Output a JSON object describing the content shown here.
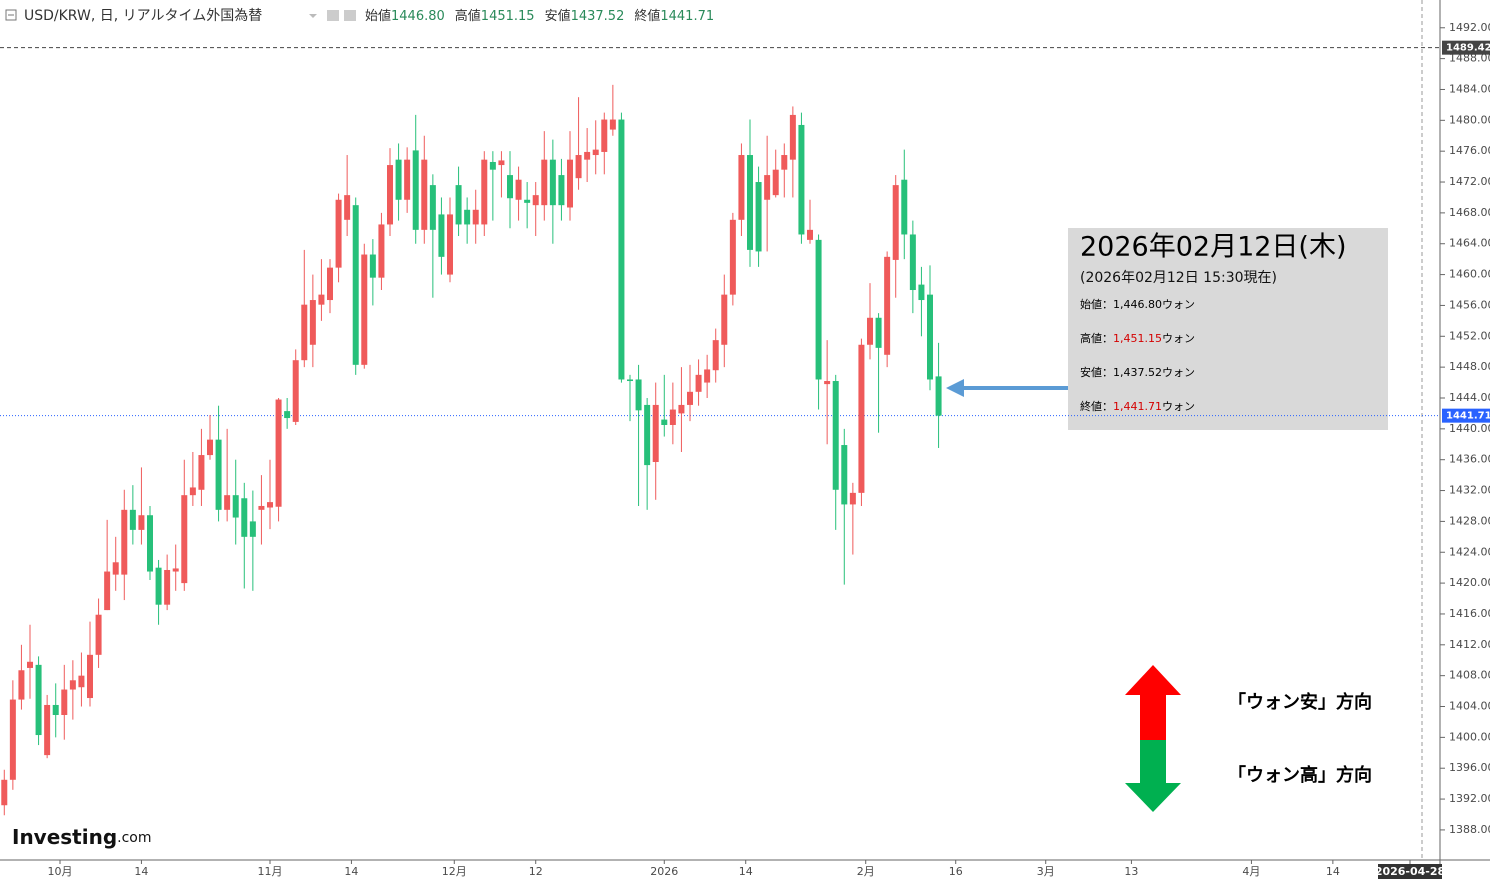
{
  "chart_data": {
    "type": "candlestick",
    "title": "USD/KRW, 日, リアルタイム外国為替",
    "ohlc_header": [
      {
        "label": "始値",
        "value": "1446.80"
      },
      {
        "label": "高値",
        "value": "1451.15"
      },
      {
        "label": "安値",
        "value": "1437.52"
      },
      {
        "label": "終値",
        "value": "1441.71"
      }
    ],
    "up_color": "#ef5a5a",
    "down_color": "#27c07a",
    "x": [
      0,
      1,
      2,
      3,
      4,
      5,
      6,
      7,
      8,
      9,
      10,
      11,
      12,
      13,
      14,
      15,
      16,
      17,
      18,
      19,
      20,
      21,
      22,
      23,
      24,
      25,
      26,
      27,
      28,
      29,
      30,
      31,
      32,
      33,
      34,
      35,
      36,
      37,
      38,
      39,
      40,
      41,
      42,
      43,
      44,
      45,
      46,
      47,
      48,
      49,
      50,
      51,
      52,
      53,
      54,
      55,
      56,
      57,
      58,
      59,
      60,
      61,
      62,
      63,
      64,
      65,
      66,
      67,
      68,
      69,
      70,
      71,
      72,
      73,
      74,
      75,
      76,
      77,
      78,
      79,
      80,
      81,
      82,
      83,
      84,
      85,
      86,
      87,
      88,
      89,
      90,
      91,
      92,
      93,
      94,
      95,
      96,
      97,
      98,
      99,
      100,
      101,
      102,
      103,
      104,
      105,
      106,
      107,
      108,
      109
    ],
    "open": [
      1391.2,
      1394.5,
      1404.9,
      1409,
      1409.4,
      1397.7,
      1404.2,
      1402.9,
      1406.2,
      1406.5,
      1405.1,
      1410.7,
      1416.5,
      1421.1,
      1421.1,
      1429.5,
      1426.9,
      1428.8,
      1422,
      1417.2,
      1421.5,
      1420,
      1431.4,
      1432.1,
      1436.6,
      1438.6,
      1429.5,
      1431.4,
      1431,
      1428,
      1429.5,
      1429.8,
      1429.9,
      1442.3,
      1440.9,
      1448.9,
      1450.9,
      1456.1,
      1456.7,
      1460.9,
      1467.1,
      1469,
      1448.3,
      1462.6,
      1459.6,
      1466.5,
      1474.9,
      1469.7,
      1476.1,
      1465.8,
      1471.6,
      1467.8,
      1460,
      1471.6,
      1468.4,
      1466.5,
      1466.5,
      1474.6,
      1474.2,
      1472.9,
      1469.7,
      1469.7,
      1469,
      1469,
      1474.9,
      1472.9,
      1468.7,
      1472.5,
      1474.9,
      1475.5,
      1475.9,
      1478.8,
      1480.1,
      1446.4,
      1446.4,
      1443.1,
      1435.7,
      1441.2,
      1440.5,
      1442,
      1443.1,
      1444.8,
      1446,
      1447.6,
      1450.9,
      1457.4,
      1467.1,
      1475.5,
      1472,
      1469.7,
      1470.3,
      1473.6,
      1474.9,
      1479.4,
      1464.5,
      1464.5,
      1445.8,
      1446.2,
      1437.9,
      1430.2,
      1431.7,
      1450.9,
      1454.4,
      1449.6,
      1461.9,
      1472.3,
      1465.2,
      1458.7,
      1457.4,
      1446.8
    ],
    "high": [
      1395.8,
      1407.4,
      1412,
      1414.6,
      1410.5,
      1405.5,
      1407,
      1409.4,
      1410,
      1411,
      1415,
      1418,
      1428.2,
      1426,
      1432.1,
      1432.7,
      1435,
      1430,
      1423,
      1423.7,
      1425,
      1436,
      1437,
      1440,
      1441.8,
      1443,
      1440,
      1436,
      1433,
      1432,
      1434,
      1436,
      1444,
      1444,
      1450.3,
      1463.2,
      1460,
      1462,
      1462,
      1470.5,
      1475.5,
      1470,
      1464,
      1464.6,
      1468,
      1476.4,
      1477,
      1476.5,
      1480.7,
      1478,
      1473,
      1470,
      1470,
      1474,
      1470,
      1471,
      1476,
      1476,
      1476,
      1476,
      1474,
      1472,
      1472,
      1478.6,
      1477.5,
      1475,
      1478.6,
      1483,
      1479,
      1480,
      1481,
      1484.6,
      1481,
      1447,
      1448.3,
      1444,
      1446,
      1447,
      1446,
      1448,
      1448.3,
      1449,
      1449.6,
      1453,
      1460,
      1468,
      1477,
      1480.1,
      1474,
      1478,
      1476.2,
      1477,
      1481.8,
      1481,
      1469.7,
      1465.2,
      1451.5,
      1447,
      1440,
      1433,
      1451.7,
      1458.9,
      1455,
      1463,
      1472.9,
      1476.2,
      1467,
      1461,
      1461.2,
      1451.15
    ],
    "low": [
      1389.9,
      1393.2,
      1403.6,
      1405,
      1399,
      1397.3,
      1400,
      1399.7,
      1402.3,
      1404,
      1404,
      1409,
      1416.5,
      1419,
      1417.8,
      1425,
      1425,
      1420.4,
      1414.6,
      1416.5,
      1419,
      1419,
      1430,
      1430,
      1436,
      1428,
      1428,
      1425,
      1419.3,
      1419,
      1425,
      1427,
      1428,
      1440,
      1440.5,
      1448,
      1448,
      1454,
      1455,
      1459,
      1465,
      1447,
      1447.8,
      1456,
      1458,
      1465,
      1467,
      1468,
      1464,
      1464,
      1457,
      1460,
      1459,
      1465,
      1464,
      1464,
      1465,
      1467,
      1470,
      1466,
      1467,
      1466,
      1465,
      1467,
      1464,
      1467,
      1467,
      1471,
      1472,
      1473,
      1473,
      1478,
      1446,
      1441,
      1430,
      1429.5,
      1430.8,
      1439,
      1438,
      1437,
      1441,
      1443,
      1444,
      1446,
      1448,
      1456,
      1465,
      1461,
      1461,
      1463,
      1470,
      1470,
      1470,
      1464,
      1464,
      1442.5,
      1438,
      1426.9,
      1419.8,
      1423.7,
      1430,
      1449,
      1439.5,
      1448,
      1457,
      1462,
      1455,
      1452,
      1445,
      1437.52
    ],
    "close": [
      1394.5,
      1404.9,
      1408.7,
      1409.8,
      1400.3,
      1404.2,
      1402.9,
      1406.2,
      1407.4,
      1408,
      1410.7,
      1415.9,
      1421.5,
      1422.7,
      1429.5,
      1426.9,
      1428.8,
      1421.5,
      1417.2,
      1421.7,
      1421.9,
      1431.4,
      1432.4,
      1436.6,
      1438.6,
      1429.5,
      1431.4,
      1428.5,
      1426,
      1426,
      1430,
      1430.5,
      1443.8,
      1441.4,
      1448.9,
      1456.1,
      1456.7,
      1457.4,
      1460.9,
      1469.7,
      1470.3,
      1448.3,
      1462.6,
      1459.6,
      1466.5,
      1474.2,
      1469.7,
      1474.9,
      1465.8,
      1474.9,
      1465.8,
      1462.3,
      1467.8,
      1466.5,
      1466.5,
      1468.4,
      1474.9,
      1473.6,
      1474.8,
      1469.9,
      1472.3,
      1469.3,
      1470.3,
      1474.9,
      1469,
      1469,
      1474.9,
      1475.5,
      1475.9,
      1476.2,
      1480.1,
      1480.1,
      1446.4,
      1446.2,
      1442.4,
      1435.3,
      1443.1,
      1440.5,
      1442.5,
      1443.1,
      1444.8,
      1447,
      1447.7,
      1451.5,
      1457.4,
      1467.1,
      1475.5,
      1463.2,
      1463,
      1472.9,
      1473.6,
      1475.5,
      1480.7,
      1465.2,
      1465.8,
      1446.4,
      1446.2,
      1432.1,
      1430.2,
      1431.7,
      1450.9,
      1454.4,
      1450.5,
      1462.3,
      1471.6,
      1465.2,
      1458,
      1456.7,
      1446.4,
      1441.71
    ],
    "xlim": [
      -0.5,
      167.5
    ],
    "xticks": [
      {
        "value": 6.5,
        "label": "10月"
      },
      {
        "value": 16,
        "label": "14"
      },
      {
        "value": 31,
        "label": "11月"
      },
      {
        "value": 40.5,
        "label": "14"
      },
      {
        "value": 52.5,
        "label": "12月"
      },
      {
        "value": 62,
        "label": "12"
      },
      {
        "value": 77,
        "label": "2026"
      },
      {
        "value": 86.5,
        "label": "14"
      },
      {
        "value": 100.5,
        "label": "2月"
      },
      {
        "value": 111,
        "label": "16"
      },
      {
        "value": 121.5,
        "label": "3月"
      },
      {
        "value": 131.5,
        "label": "13"
      },
      {
        "value": 145.5,
        "label": "4月"
      },
      {
        "value": 155,
        "label": "14"
      },
      {
        "value": 164,
        "label": "2026-04-28"
      }
    ],
    "ylim": [
      1384.1,
      1495.6
    ],
    "yticks": [
      {
        "value": 1388,
        "label": "1388.00"
      },
      {
        "value": 1392,
        "label": "1392.00"
      },
      {
        "value": 1396,
        "label": "1396.00"
      },
      {
        "value": 1400,
        "label": "1400.00"
      },
      {
        "value": 1404,
        "label": "1404.00"
      },
      {
        "value": 1408,
        "label": "1408.00"
      },
      {
        "value": 1412,
        "label": "1412.00"
      },
      {
        "value": 1416,
        "label": "1416.00"
      },
      {
        "value": 1420,
        "label": "1420.00"
      },
      {
        "value": 1424,
        "label": "1424.00"
      },
      {
        "value": 1428,
        "label": "1428.00"
      },
      {
        "value": 1432,
        "label": "1432.00"
      },
      {
        "value": 1436,
        "label": "1436.00"
      },
      {
        "value": 1440,
        "label": "1440.00"
      },
      {
        "value": 1444,
        "label": "1444.00"
      },
      {
        "value": 1448,
        "label": "1448.00"
      },
      {
        "value": 1452,
        "label": "1452.00"
      },
      {
        "value": 1456,
        "label": "1456.00"
      },
      {
        "value": 1460,
        "label": "1460.00"
      },
      {
        "value": 1464,
        "label": "1464.00"
      },
      {
        "value": 1468,
        "label": "1468.00"
      },
      {
        "value": 1472,
        "label": "1472.00"
      },
      {
        "value": 1476,
        "label": "1476.00"
      },
      {
        "value": 1480,
        "label": "1480.00"
      },
      {
        "value": 1484,
        "label": "1484.00"
      },
      {
        "value": 1488,
        "label": "1488.00"
      },
      {
        "value": 1492,
        "label": "1492.00"
      }
    ],
    "price_lines": [
      {
        "value": 1489.42,
        "color": "#444"
      },
      {
        "value": 1441.71,
        "color": "#2962ff"
      }
    ],
    "grid": false
  },
  "info_box": {
    "date": "2026年02月12日(木)",
    "asof": "(2026年02月12日 15:30現在)",
    "separator": "：",
    "rows": [
      {
        "label": "始値",
        "value": "1,446.80",
        "unit": "ウォン",
        "color": "#000000"
      },
      {
        "label": "高値",
        "value": "1,451.15",
        "unit": "ウォン",
        "color": "#d40000"
      },
      {
        "label": "安値",
        "value": "1,437.52",
        "unit": "ウォン",
        "color": "#000000"
      },
      {
        "label": "終値",
        "value": "1,441.71",
        "unit": "ウォン",
        "color": "#d40000"
      }
    ]
  },
  "direction": {
    "up": "「ウォン安」方向",
    "down": "「ウォン高」方向"
  },
  "logo": {
    "name": "Investing",
    "suffix": ".com"
  }
}
